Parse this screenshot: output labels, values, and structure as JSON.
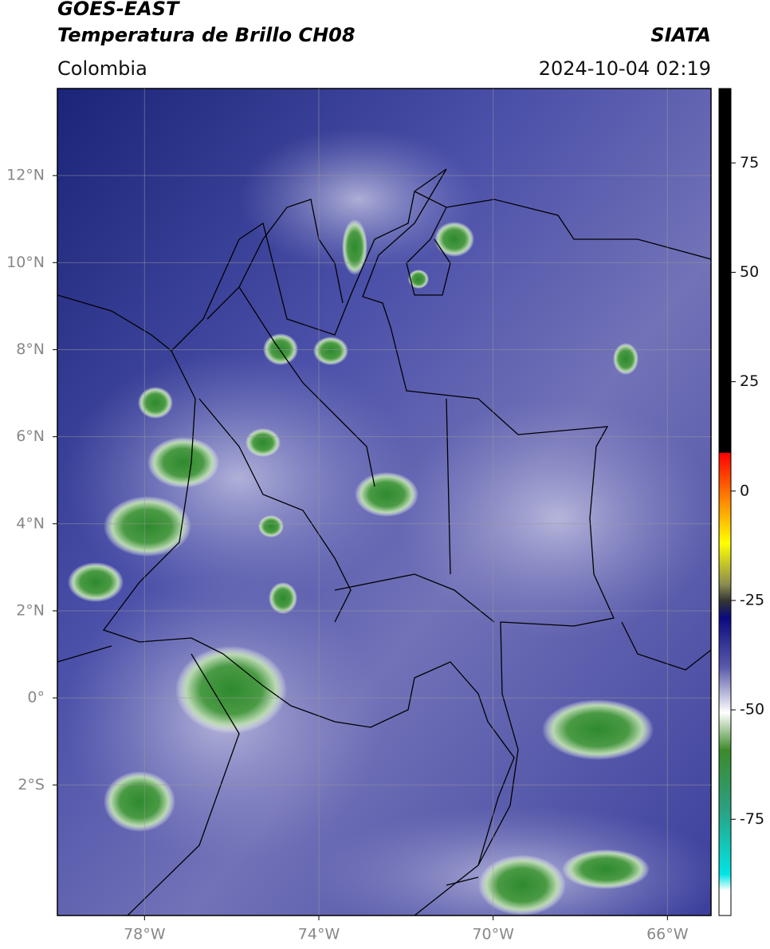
{
  "map": {
    "title": "GOES-EAST",
    "subtitle": "Temperatura de Brillo CH08",
    "source": "SIATA",
    "region": "Colombia",
    "datetime": "2024-10-04 02:19",
    "xlim": [
      -80,
      -65
    ],
    "ylim": [
      -5,
      14
    ],
    "xticks": [
      {
        "value": -78,
        "label": "78°W"
      },
      {
        "value": -74,
        "label": "74°W"
      },
      {
        "value": -70,
        "label": "70°W"
      },
      {
        "value": -66,
        "label": "66°W"
      }
    ],
    "yticks": [
      {
        "value": 12,
        "label": "12°N"
      },
      {
        "value": 10,
        "label": "10°N"
      },
      {
        "value": 8,
        "label": "8°N"
      },
      {
        "value": 6,
        "label": "6°N"
      },
      {
        "value": 4,
        "label": "4°N"
      },
      {
        "value": 2,
        "label": "2°N"
      },
      {
        "value": 0,
        "label": "0°"
      },
      {
        "value": -2,
        "label": "2°S"
      }
    ],
    "grid": true,
    "colorbar": {
      "lim": [
        -97,
        92
      ],
      "ticks": [
        75,
        50,
        25,
        0,
        -25,
        -50,
        -75
      ]
    }
  }
}
